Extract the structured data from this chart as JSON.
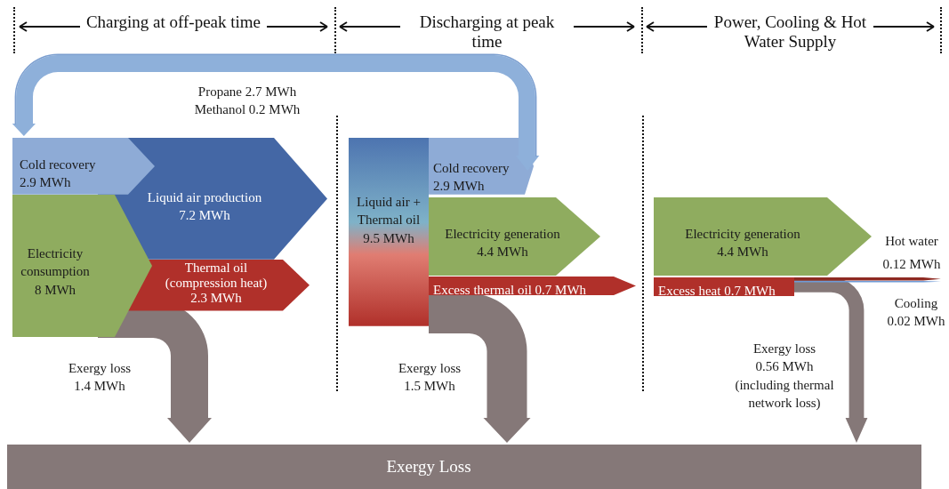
{
  "chart_data": {
    "type": "other",
    "categories": [
      "Cold recovery",
      "Liquid air production",
      "Electricity consumption",
      "Thermal oil (compression heat)",
      "Exergy loss",
      "Liquid air + Thermal oil",
      "Cold recovery",
      "Electricity generation",
      "Excess thermal oil",
      "Exergy loss",
      "Electricity generation",
      "Hot water",
      "Excess heat",
      "Cooling",
      "Exergy loss",
      "Propane",
      "Methanol"
    ],
    "values": [
      2.9,
      7.2,
      8,
      2.3,
      1.4,
      9.5,
      2.9,
      4.4,
      0.7,
      1.5,
      4.4,
      0.12,
      0.7,
      0.02,
      0.56,
      2.7,
      0.2
    ],
    "value_labels": [
      "2.9 MWh",
      "7.2 MWh",
      "8 MWh",
      "2.3 MWh",
      "1.4 MWh",
      "9.5 MWh",
      "2.9 MWh",
      "4.4 MWh",
      "0.7 MWh",
      "1.5 MWh",
      "4.4 MWh",
      "0.12 MWh",
      "0.7 MWh",
      "0.02 MWh",
      "0.56 MWh",
      "2.7 MWh",
      "0.2 MWh"
    ],
    "colors": [
      "#8eabd6",
      "#4467a5",
      "#8fac5f",
      "#b0302a",
      "#857878",
      "#4d74b0",
      "#8eabd6",
      "#8fac5f",
      "#b0302a",
      "#857878",
      "#8fac5f",
      "#8e2a22",
      "#b0302a",
      "#6f9ad6",
      "#857878",
      "#8eb0da",
      "#7c9fd0"
    ],
    "annotations": [
      "Charging at off-peak time",
      "Discharging at peak time",
      "Power, Cooling & Hot Water Supply",
      "(including thermal network loss)",
      "Exergy Loss"
    ]
  }
}
